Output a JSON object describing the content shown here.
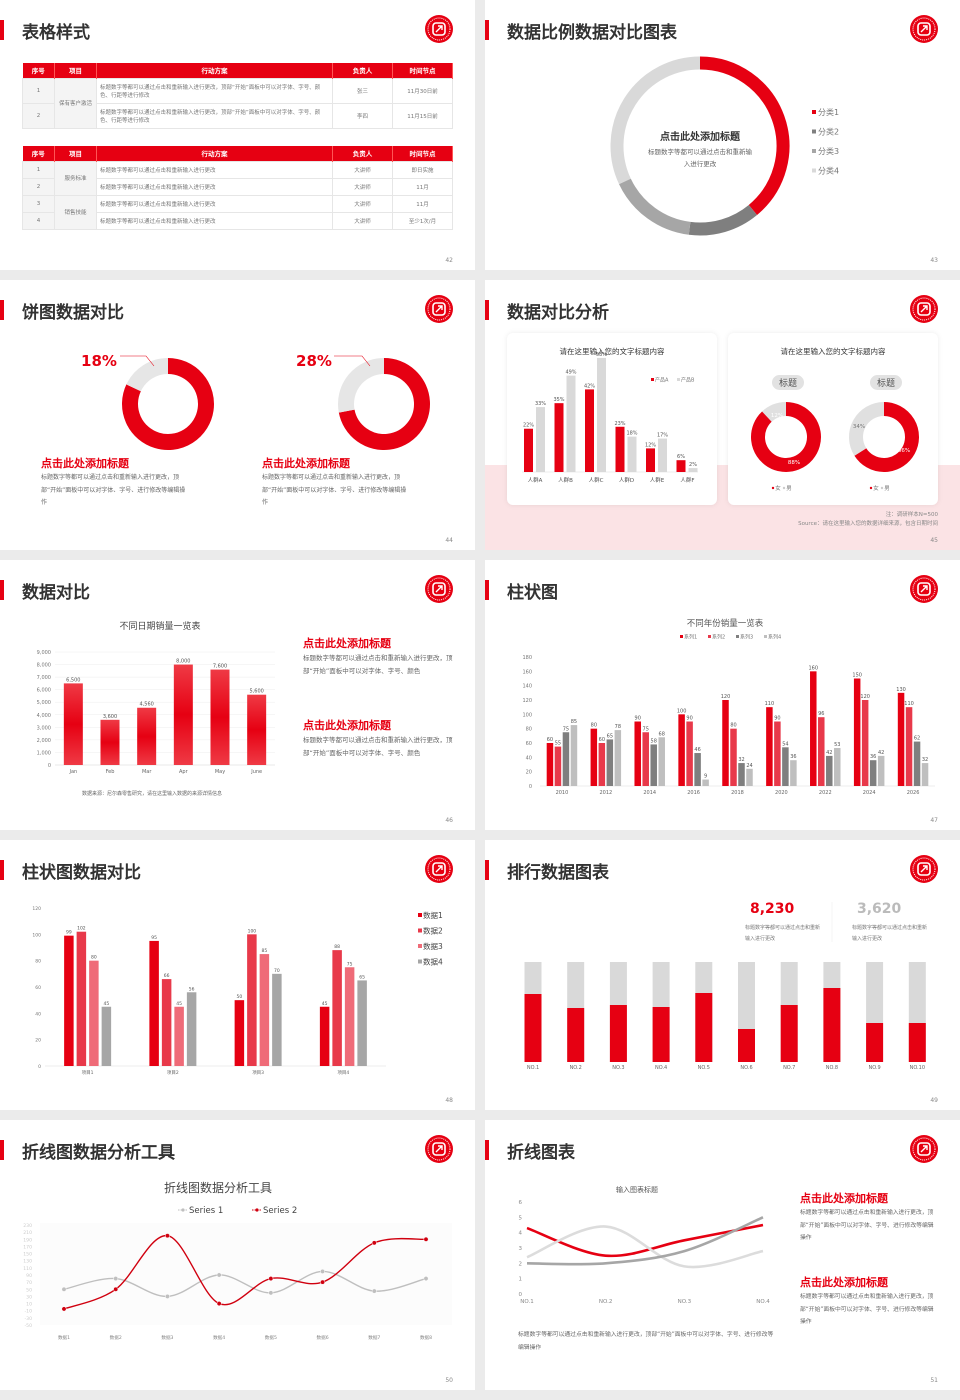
{
  "colors": {
    "accent": "#e60012",
    "red2": "#e8394a",
    "pink": "#ef6b78",
    "gray": "#a6a6a6",
    "dark_gray": "#7f7f7f",
    "light_gray": "#d9d9d9",
    "band": "#fbe3e5"
  },
  "logo_icon": "red-seal-logo-icon",
  "slides": {
    "s42": {
      "title": "表格样式",
      "page": "42",
      "tables": [
        {
          "headers": [
            "序号",
            "项目",
            "行动方案",
            "负责人",
            "时间节点"
          ],
          "groups": [
            {
              "name": "保有客户激活",
              "rows": [
                {
                  "no": "1",
                  "plan": "标题数字等都可以通过点击和重新输入进行更改，顶部“开始”面板中可以对字体、字号、颜色、行距等进行修改",
                  "owner": "张三",
                  "time": "11月30日前"
                },
                {
                  "no": "2",
                  "plan": "标题数字等都可以通过点击和重新输入进行更改，顶部“开始”面板中可以对字体、字号、颜色、行距等进行修改",
                  "owner": "李四",
                  "time": "11月15日前"
                }
              ]
            }
          ]
        },
        {
          "headers": [
            "序号",
            "项目",
            "行动方案",
            "负责人",
            "时间节点"
          ],
          "groups": [
            {
              "name": "服务标准",
              "rows": [
                {
                  "no": "1",
                  "plan": "标题数字等都可以通过点击和重新输入进行更改",
                  "owner": "大讲师",
                  "time": "即日实施"
                },
                {
                  "no": "2",
                  "plan": "标题数字等都可以通过点击和重新输入进行更改",
                  "owner": "大讲师",
                  "time": "11月"
                }
              ]
            },
            {
              "name": "销售技能",
              "rows": [
                {
                  "no": "3",
                  "plan": "标题数字等都可以通过点击和重新输入进行更改",
                  "owner": "大讲师",
                  "time": "11月"
                },
                {
                  "no": "4",
                  "plan": "标题数字等都可以通过点击和重新输入进行更改",
                  "owner": "大讲师",
                  "time": "至少1次/月"
                }
              ]
            }
          ]
        }
      ]
    },
    "s43": {
      "title": "数据比例数据对比图表",
      "page": "43",
      "center_heading": "点击此处添加标题",
      "center_text": "标题数字等都可以通过点击和重新输入进行更改"
    },
    "s44": {
      "title": "饼图数据对比",
      "page": "44",
      "items": [
        {
          "heading": "点击此处添加标题",
          "text": "标题数字等都可以通过点击和重新输入进行更改，顶部“开始”面板中可以对字体、字号、进行修改等编辑操作"
        },
        {
          "heading": "点击此处添加标题",
          "text": "标题数字等都可以通过点击和重新输入进行更改，顶部“开始”面板中可以对字体、字号、进行修改等编辑操作"
        }
      ]
    },
    "s45": {
      "title": "数据对比分析",
      "page": "45",
      "card_titles": [
        "请在这里输入您的文字标题内容",
        "请在这里输入您的文字标题内容"
      ],
      "pill_labels": [
        "标题",
        "标题"
      ],
      "note": "注：调研样本N=500",
      "source": "Source：请在这里输入您的数据详细来源，包含日期时间"
    },
    "s46": {
      "title": "数据对比",
      "page": "46",
      "source": "数据来源：尼尔森零售研究，请在这里输入数据的来源详情信息",
      "items": [
        {
          "heading": "点击此处添加标题",
          "text": "标题数字等都可以通过点击和重新输入进行更改，顶部“开始”面板中可以对字体、字号、颜色"
        },
        {
          "heading": "点击此处添加标题",
          "text": "标题数字等都可以通过点击和重新输入进行更改，顶部“开始”面板中可以对字体、字号、颜色"
        }
      ]
    },
    "s47": {
      "title": "柱状图",
      "page": "47"
    },
    "s48": {
      "title": "柱状图数据对比",
      "page": "48"
    },
    "s49": {
      "title": "排行数据图表",
      "page": "49",
      "stats": [
        {
          "value": "8,230",
          "text": "标题数字等都可以通过点击和重新输入进行更改"
        },
        {
          "value": "3,620",
          "text": "标题数字等都可以通过点击和重新输入进行更改"
        }
      ]
    },
    "s50": {
      "title": "折线图数据分析工具",
      "page": "50"
    },
    "s51": {
      "title": "折线图表",
      "page": "51",
      "caption": "标题数字等都可以通过点击和重新输入进行更改，顶部“开始”面板中可以对字体、字号、进行修改等编辑操作",
      "items": [
        {
          "heading": "点击此处添加标题",
          "text": "标题数字等都可以通过点击和重新输入进行更改，顶部“开始”面板中可以对字体、字号、进行修改等编辑操作"
        },
        {
          "heading": "点击此处添加标题",
          "text": "标题数字等都可以通过点击和重新输入进行更改，顶部“开始”面板中可以对字体、字号、进行修改等编辑操作"
        }
      ]
    }
  },
  "chart_data": [
    {
      "type": "pie",
      "donut": true,
      "categories": [
        "分类1",
        "分类2",
        "分类3",
        "分类4"
      ],
      "values": [
        39,
        13,
        16,
        32
      ],
      "colors": [
        "#e60012",
        "#7f7f7f",
        "#a6a6a6",
        "#d9d9d9"
      ],
      "legend": "right"
    },
    {
      "type": "pie",
      "donut": true,
      "values": [
        82,
        18
      ],
      "label": "18%",
      "colors": [
        "#e60012",
        "#e6e6e6"
      ]
    },
    {
      "type": "pie",
      "donut": true,
      "values": [
        72,
        28
      ],
      "label": "28%",
      "colors": [
        "#e60012",
        "#e6e6e6"
      ]
    },
    {
      "type": "bar",
      "categories": [
        "人群A",
        "人群B",
        "人群C",
        "人群D",
        "人群E",
        "人群F"
      ],
      "series": [
        {
          "name": "产品A",
          "values": [
            22,
            35,
            42,
            23,
            12,
            6
          ],
          "labels": [
            "22%",
            "35%",
            "42%",
            "23%",
            "12%",
            "6%"
          ],
          "color": "#e60012"
        },
        {
          "name": "产品B",
          "values": [
            33,
            49,
            58,
            18,
            17,
            2
          ],
          "labels": [
            "33%",
            "49%",
            "58%",
            "18%",
            "17%",
            "2%"
          ],
          "color": "#d9d9d9"
        }
      ],
      "ylim": [
        0,
        60
      ],
      "legend": "top-right"
    },
    {
      "type": "pie",
      "donut": true,
      "categories": [
        "女",
        "男"
      ],
      "values": [
        88,
        12
      ],
      "labels": [
        "88%",
        "12%"
      ],
      "colors": [
        "#e60012",
        "#e0e0e0"
      ]
    },
    {
      "type": "pie",
      "donut": true,
      "categories": [
        "女",
        "男"
      ],
      "values": [
        66,
        34
      ],
      "labels": [
        "66%",
        "34%"
      ],
      "colors": [
        "#e60012",
        "#e0e0e0"
      ]
    },
    {
      "type": "bar",
      "title": "不同日期销量一览表",
      "categories": [
        "Jan",
        "Feb",
        "Mar",
        "Apr",
        "May",
        "June"
      ],
      "series": [
        {
          "values": [
            6500,
            3600,
            4560,
            8000,
            7600,
            5600
          ],
          "labels": [
            "6,500",
            "3,600",
            "4,560",
            "8,000",
            "7,600",
            "5,600"
          ],
          "color": "#e60012"
        }
      ],
      "ylim": [
        0,
        9000
      ],
      "yticks": [
        "0",
        "1,000",
        "2,000",
        "3,000",
        "4,000",
        "5,000",
        "6,000",
        "7,000",
        "8,000",
        "9,000"
      ],
      "grid": true
    },
    {
      "type": "bar",
      "title": "不同年份销量一览表",
      "categories": [
        "2010",
        "2012",
        "2014",
        "2016",
        "2018",
        "2020",
        "2022",
        "2024",
        "2026"
      ],
      "series": [
        {
          "name": "系列1",
          "values": [
            60,
            80,
            90,
            100,
            120,
            110,
            160,
            150,
            130
          ],
          "color": "#e60012"
        },
        {
          "name": "系列2",
          "values": [
            55,
            60,
            75,
            90,
            80,
            90,
            96,
            120,
            110
          ],
          "color": "#e8394a"
        },
        {
          "name": "系列3",
          "values": [
            75,
            65,
            58,
            46,
            32,
            54,
            42,
            36,
            62
          ],
          "color": "#7f7f7f"
        },
        {
          "name": "系列4",
          "values": [
            85,
            78,
            68,
            9,
            24,
            36,
            53,
            42,
            32
          ],
          "color": "#bfbfbf"
        }
      ],
      "ylim": [
        0,
        180
      ],
      "yticks": [
        "0",
        "20",
        "40",
        "60",
        "80",
        "100",
        "120",
        "140",
        "160",
        "180"
      ],
      "legend": "top"
    },
    {
      "type": "bar",
      "categories": [
        "项目1",
        "项目2",
        "项目3",
        "项目4"
      ],
      "series": [
        {
          "name": "数据1",
          "values": [
            99,
            95,
            50,
            45
          ],
          "color": "#e60012"
        },
        {
          "name": "数据2",
          "values": [
            102,
            66,
            100,
            88
          ],
          "color": "#e8394a"
        },
        {
          "name": "数据3",
          "values": [
            80,
            45,
            85,
            75
          ],
          "color": "#ef6b78"
        },
        {
          "name": "数据4",
          "values": [
            45,
            56,
            70,
            65
          ],
          "color": "#a6a6a6"
        }
      ],
      "ylim": [
        0,
        120
      ],
      "yticks": [
        "0",
        "20",
        "40",
        "60",
        "80",
        "100",
        "120"
      ],
      "legend": "right"
    },
    {
      "type": "bar",
      "stacked": true,
      "categories": [
        "NO.1",
        "NO.2",
        "NO.3",
        "NO.4",
        "NO.5",
        "NO.6",
        "NO.7",
        "NO.8",
        "NO.9",
        "NO.10"
      ],
      "values_percent": [
        68,
        54,
        57,
        55,
        69,
        33,
        57,
        74,
        39,
        39
      ],
      "colors": [
        "#e60012",
        "#d9d9d9"
      ]
    },
    {
      "type": "line",
      "title": "折线图数据分析工具",
      "categories": [
        "数据1",
        "数据2",
        "数据3",
        "数据4",
        "数据5",
        "数据6",
        "数据7",
        "数据8"
      ],
      "series": [
        {
          "name": "Series 1",
          "values": [
            50,
            80,
            30,
            90,
            40,
            100,
            45,
            80
          ],
          "color": "#bfbfbf"
        },
        {
          "name": "Series 2",
          "values": [
            -5,
            50,
            200,
            10,
            80,
            70,
            180,
            190
          ],
          "color": "#d0000f"
        }
      ],
      "ylim": [
        -50,
        230
      ],
      "yticks": [
        "-50",
        "-30",
        "-10",
        "10",
        "30",
        "50",
        "70",
        "90",
        "110",
        "130",
        "150",
        "170",
        "190",
        "210",
        "230"
      ],
      "legend": "top"
    },
    {
      "type": "line",
      "title": "输入图表标题",
      "categories": [
        "NO.1",
        "NO.2",
        "NO.3",
        "NO.4"
      ],
      "series": [
        {
          "values": [
            4.3,
            2.5,
            3.5,
            4.5
          ],
          "color": "#e60012"
        },
        {
          "values": [
            2.4,
            4.4,
            1.8,
            2.8
          ],
          "color": "#dcdcdc"
        },
        {
          "values": [
            2,
            2,
            2.8,
            5
          ],
          "color": "#a6a6a6"
        }
      ],
      "ylim": [
        0,
        6
      ],
      "yticks": [
        "0",
        "1",
        "2",
        "3",
        "4",
        "5",
        "6"
      ]
    }
  ]
}
